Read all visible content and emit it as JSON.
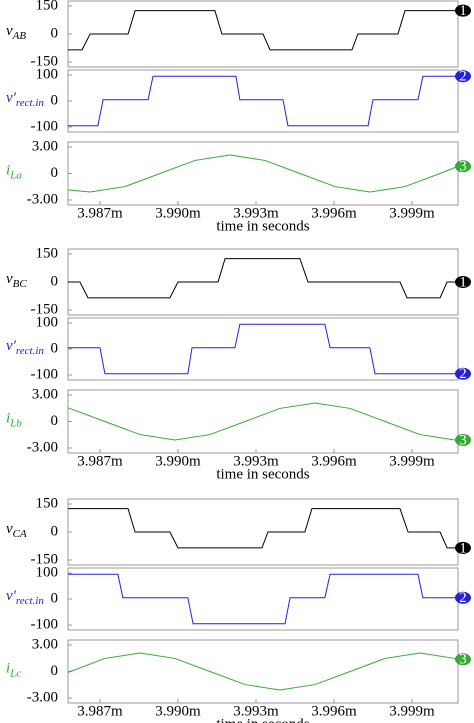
{
  "chart_data": [
    {
      "type": "line",
      "xlabel": "time in seconds",
      "xlim": [
        0.00398577,
        0.00400077
      ],
      "xticks": [
        {
          "value": 0.003987,
          "label": "3.987m"
        },
        {
          "value": 0.00399,
          "label": "3.990m"
        },
        {
          "value": 0.003993,
          "label": "3.993m"
        },
        {
          "value": 0.003996,
          "label": "3.996m"
        },
        {
          "value": 0.003999,
          "label": "3.999m"
        }
      ],
      "panels": [
        {
          "ylabel": "v",
          "ylabel_sub": "AB",
          "color": "#000000",
          "trace_marker": "1",
          "ylim": [
            -150,
            150
          ],
          "yticks": [
            150,
            0,
            -150
          ],
          "x": [
            0.00398577,
            0.00398631,
            0.00398662,
            0.00398808,
            0.00398835,
            0.00399142,
            0.00399169,
            0.00399327,
            0.00399354,
            0.00399669,
            0.00399692,
            0.00399846,
            0.00399873,
            0.00400077
          ],
          "values": [
            -85,
            -85,
            0,
            0,
            125,
            125,
            0,
            0,
            -85,
            -85,
            0,
            0,
            125,
            125
          ]
        },
        {
          "ylabel": "v'",
          "ylabel_sub": "rect.in",
          "color": "#2222dd",
          "trace_marker": "2",
          "ylim": [
            -100,
            100
          ],
          "yticks": [
            100,
            0,
            -100
          ],
          "x": [
            0.00398577,
            0.00398692,
            0.00398712,
            0.00398885,
            0.00398904,
            0.00399223,
            0.00399238,
            0.00399404,
            0.00399423,
            0.00399731,
            0.0039975,
            0.00399923,
            0.00399942,
            0.00400077
          ],
          "values": [
            -95,
            -95,
            5,
            5,
            95,
            95,
            5,
            5,
            -95,
            -95,
            5,
            5,
            95,
            95
          ]
        },
        {
          "ylabel": "i",
          "ylabel_sub": "La",
          "color": "#33aa33",
          "trace_marker": "3",
          "ylim": [
            -3,
            3
          ],
          "yticks": [
            {
              "value": 3,
              "label": "3.00"
            },
            0,
            {
              "value": -3,
              "label": "-3.00"
            }
          ],
          "x": [
            0.00398577,
            0.00398662,
            0.00398796,
            0.00398931,
            0.00399065,
            0.003992,
            0.00399335,
            0.00399469,
            0.00399604,
            0.00399738,
            0.00399873,
            0.00400008,
            0.00400077
          ],
          "values": [
            -1.85,
            -2.1,
            -1.48,
            0,
            1.48,
            2.1,
            1.48,
            0,
            -1.48,
            -2.1,
            -1.48,
            0,
            0.82
          ]
        }
      ]
    },
    {
      "type": "line",
      "xlabel": "time in seconds",
      "xlim": [
        0.00398577,
        0.00400077
      ],
      "xticks": [
        {
          "value": 0.003987,
          "label": "3.987m"
        },
        {
          "value": 0.00399,
          "label": "3.990m"
        },
        {
          "value": 0.003993,
          "label": "3.993m"
        },
        {
          "value": 0.003996,
          "label": "3.996m"
        },
        {
          "value": 0.003999,
          "label": "3.999m"
        }
      ],
      "panels": [
        {
          "ylabel": "v",
          "ylabel_sub": "BC",
          "color": "#000000",
          "trace_marker": "1",
          "ylim": [
            -150,
            150
          ],
          "yticks": [
            150,
            0,
            -150
          ],
          "x": [
            0.00398577,
            0.00398623,
            0.00398654,
            0.00398969,
            0.00399,
            0.00399154,
            0.00399181,
            0.00399469,
            0.003995,
            0.00399854,
            0.00399881,
            0.00400008,
            0.00400035,
            0.00400077
          ],
          "values": [
            0,
            0,
            -85,
            -85,
            0,
            0,
            125,
            125,
            0,
            0,
            -85,
            -85,
            0,
            0
          ]
        },
        {
          "ylabel": "v'",
          "ylabel_sub": "rect.in",
          "color": "#2222dd",
          "trace_marker": "2",
          "ylim": [
            -100,
            100
          ],
          "yticks": [
            100,
            0,
            -100
          ],
          "x": [
            0.00398577,
            0.003987,
            0.00398719,
            0.00399038,
            0.00399054,
            0.00399219,
            0.00399238,
            0.00399565,
            0.00399585,
            0.00399738,
            0.00399758,
            0.00400077
          ],
          "values": [
            5,
            5,
            -95,
            -95,
            5,
            5,
            95,
            95,
            5,
            5,
            -95,
            -95
          ]
        },
        {
          "ylabel": "i",
          "ylabel_sub": "Lb",
          "color": "#33aa33",
          "trace_marker": "3",
          "ylim": [
            -3,
            3
          ],
          "yticks": [
            {
              "value": 3,
              "label": "3.00"
            },
            0,
            {
              "value": -3,
              "label": "-3.00"
            }
          ],
          "x": [
            0.00398577,
            0.00398719,
            0.00398854,
            0.00398988,
            0.00399123,
            0.00399258,
            0.00399392,
            0.00399527,
            0.00399662,
            0.00399796,
            0.00399931,
            0.00400065,
            0.00400077
          ],
          "values": [
            1.55,
            0,
            -1.48,
            -2.1,
            -1.48,
            0,
            1.48,
            2.1,
            1.48,
            0,
            -1.48,
            -2.1,
            -2.1
          ]
        }
      ]
    },
    {
      "type": "line",
      "xlabel": "time in seconds",
      "xlim": [
        0.00398577,
        0.00400077
      ],
      "xticks": [
        {
          "value": 0.003987,
          "label": "3.987m"
        },
        {
          "value": 0.00399,
          "label": "3.990m"
        },
        {
          "value": 0.003993,
          "label": "3.993m"
        },
        {
          "value": 0.003996,
          "label": "3.996m"
        },
        {
          "value": 0.003999,
          "label": "3.999m"
        }
      ],
      "panels": [
        {
          "ylabel": "v",
          "ylabel_sub": "CA",
          "color": "#000000",
          "trace_marker": "1",
          "ylim": [
            -150,
            150
          ],
          "yticks": [
            150,
            0,
            -150
          ],
          "x": [
            0.00398577,
            0.00398808,
            0.00398835,
            0.00398969,
            0.00399,
            0.00399323,
            0.00399346,
            0.00399488,
            0.00399515,
            0.00399854,
            0.00399885,
            0.00400008,
            0.00400035,
            0.00400077
          ],
          "values": [
            125,
            125,
            0,
            0,
            -85,
            -85,
            0,
            0,
            125,
            125,
            0,
            0,
            -85,
            -85
          ]
        },
        {
          "ylabel": "v'",
          "ylabel_sub": "rect.in",
          "color": "#2222dd",
          "trace_marker": "2",
          "ylim": [
            -100,
            100
          ],
          "yticks": [
            100,
            0,
            -100
          ],
          "x": [
            0.00398577,
            0.00398769,
            0.00398788,
            0.00399038,
            0.00399058,
            0.00399412,
            0.00399431,
            0.00399565,
            0.00399585,
            0.00399923,
            0.00399942,
            0.00400077
          ],
          "values": [
            95,
            95,
            5,
            5,
            -95,
            -95,
            5,
            5,
            95,
            95,
            5,
            5
          ]
        },
        {
          "ylabel": "i",
          "ylabel_sub": "Lc",
          "color": "#33aa33",
          "trace_marker": "3",
          "ylim": [
            -3,
            3
          ],
          "yticks": [
            {
              "value": 3,
              "label": "3.00"
            },
            0,
            {
              "value": -3,
              "label": "-3.00"
            }
          ],
          "x": [
            0.00398577,
            0.00398719,
            0.00398854,
            0.00398988,
            0.00399123,
            0.00399258,
            0.00399392,
            0.00399527,
            0.00399662,
            0.00399796,
            0.00399931,
            0.00400065,
            0.00400077
          ],
          "values": [
            -0.1,
            1.48,
            2.1,
            1.48,
            0,
            -1.48,
            -2.1,
            -1.48,
            0,
            1.48,
            2.1,
            1.48,
            1.38
          ]
        }
      ]
    }
  ]
}
